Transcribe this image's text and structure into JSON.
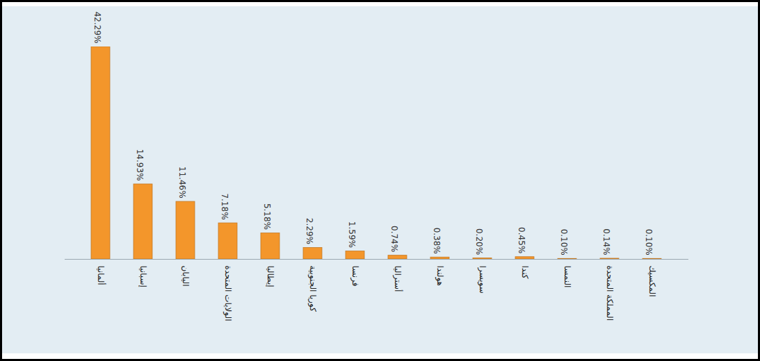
{
  "chart_data": {
    "type": "bar",
    "categories": [
      "ألمانيا",
      "إسبانيا",
      "اليابان",
      "الولايات المتحدة",
      "إيطاليا",
      "كوريا الجنوبية",
      "فرنسا",
      "أستراليا",
      "هولندا",
      "سويسرا",
      "كندا",
      "النمسا",
      "المملكة المتحدة",
      "المكسيك"
    ],
    "values": [
      42.29,
      14.93,
      11.46,
      7.18,
      5.18,
      2.29,
      1.59,
      0.74,
      0.38,
      0.2,
      0.45,
      0.1,
      0.14,
      0.1
    ],
    "value_labels": [
      "42.29%",
      "14.93%",
      "11.46%",
      "7.18%",
      "5.18%",
      "2.29%",
      "1.59%",
      "0.74%",
      "0.38%",
      "0.20%",
      "0.45%",
      "0.10%",
      "0.14%",
      "0.10%"
    ],
    "color": "#f3962b",
    "data_labels": true,
    "tick_labels": "x",
    "grid": false
  }
}
